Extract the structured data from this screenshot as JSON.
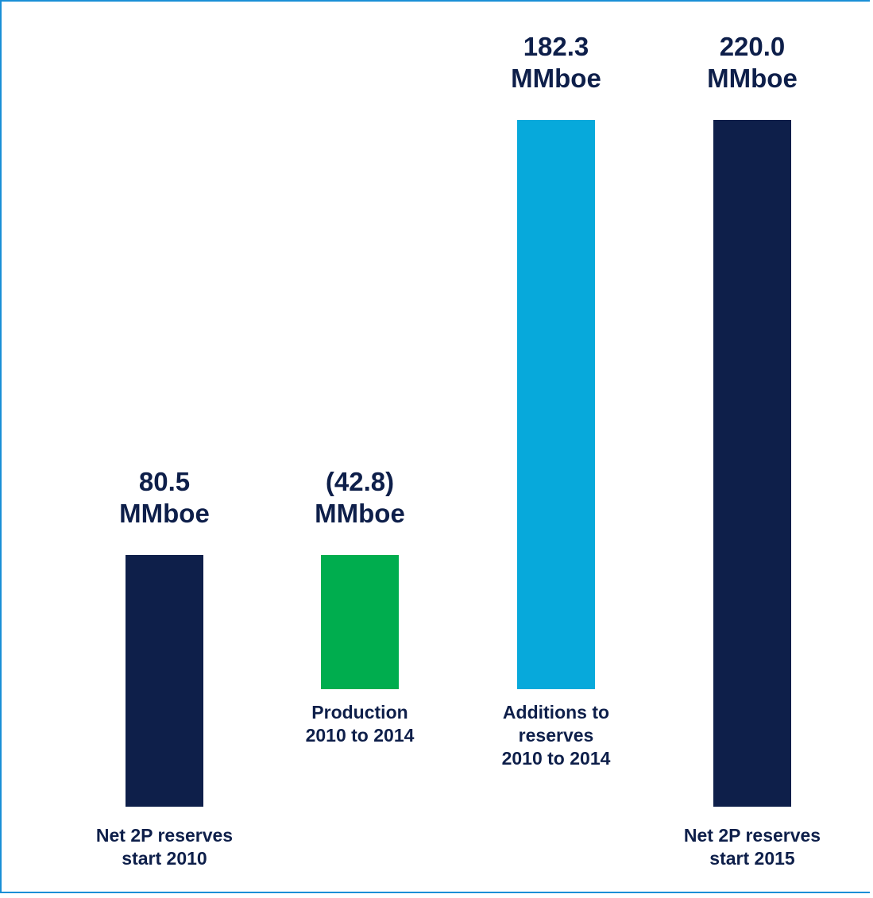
{
  "chart_data": {
    "type": "bar",
    "subtype": "waterfall",
    "categories": [
      [
        "Net 2P reserves",
        "start 2010"
      ],
      [
        "Production",
        "2010 to 2014"
      ],
      [
        "Additions to",
        "reserves",
        "2010 to 2014"
      ],
      [
        "Net 2P reserves",
        "start 2015"
      ]
    ],
    "values": [
      80.5,
      -42.8,
      182.3,
      220.0
    ],
    "value_labels": [
      [
        "80.5",
        "MMboe"
      ],
      [
        "(42.8)",
        "MMboe"
      ],
      [
        "182.3",
        "MMboe"
      ],
      [
        "220.0",
        "MMboe"
      ]
    ],
    "bar_colors": [
      "#0e1f4a",
      "#00ad4e",
      "#07a9db",
      "#0e1f4a"
    ],
    "label_color": "#0e1f4a",
    "frame_color": "#1a8fd6",
    "axis_visible": false,
    "grid": false,
    "legend": "none"
  }
}
